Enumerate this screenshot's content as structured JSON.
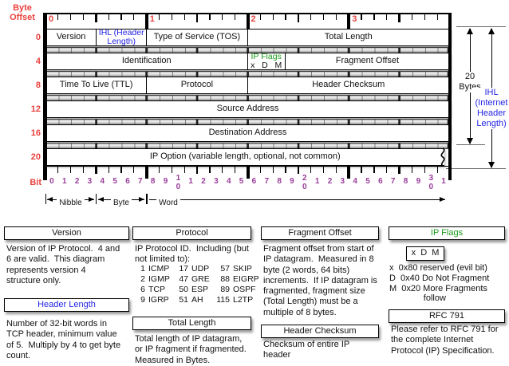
{
  "colors": {
    "red": "#e8433f",
    "blue": "#2525e6",
    "green": "#1a9c1a",
    "purple": "#993d99"
  },
  "diagram": {
    "byte_offset_label": "Byte\nOffset",
    "bit_label": "Bit",
    "byte_numbers": [
      "0",
      "1",
      "2",
      "3"
    ],
    "row_offsets": [
      "0",
      "4",
      "8",
      "12",
      "16",
      "20"
    ],
    "bit_numbers": [
      "0",
      "1",
      "2",
      "3",
      "4",
      "5",
      "6",
      "7",
      "8",
      "9",
      "1|0",
      "1",
      "2",
      "3",
      "4",
      "5",
      "6",
      "7",
      "8",
      "9",
      "2|0",
      "1",
      "2",
      "3",
      "4",
      "5",
      "6",
      "7",
      "8",
      "9",
      "3|0",
      "1"
    ],
    "scale_labels": {
      "nibble": "Nibble",
      "byte": "Byte",
      "word": "Word"
    },
    "rows": [
      {
        "offset": "0",
        "cells": [
          {
            "label": "Version",
            "bits": 4
          },
          {
            "label": "IHL (Header\nLength)",
            "bits": 4,
            "color": "blue",
            "small": true
          },
          {
            "label": "Type of Service (TOS)",
            "bits": 8
          },
          {
            "label": "Total Length",
            "bits": 16
          }
        ]
      },
      {
        "offset": "4",
        "cells": [
          {
            "label": "Identification",
            "bits": 16
          },
          {
            "label": "IP Flags",
            "sub": "x   D   M",
            "bits": 3,
            "color": "green",
            "small": true
          },
          {
            "label": "Fragment Offset",
            "bits": 13
          }
        ]
      },
      {
        "offset": "8",
        "cells": [
          {
            "label": "Time To Live (TTL)",
            "bits": 8
          },
          {
            "label": "Protocol",
            "bits": 8
          },
          {
            "label": "Header Checksum",
            "bits": 16
          }
        ]
      },
      {
        "offset": "12",
        "cells": [
          {
            "label": "Source Address",
            "bits": 32
          }
        ]
      },
      {
        "offset": "16",
        "cells": [
          {
            "label": "Destination Address",
            "bits": 32
          }
        ]
      },
      {
        "offset": "20",
        "cells": [
          {
            "label": "IP Option (variable length, optional, not common)",
            "bits": 32
          }
        ],
        "torn": true
      }
    ],
    "right_annotations": {
      "bytes_label": "20\nBytes",
      "ihl_label": "IHL\n(Internet\nHeader\nLength)"
    }
  },
  "notes": {
    "version": {
      "title": "Version",
      "body": "Version of IP Protocol.  4 and\n6 are valid.  This diagram\nrepresents version 4\nstructure only."
    },
    "header_length": {
      "title": "Header Length",
      "body": "Number of 32-bit words in\nTCP header, minimum value\nof 5.  Multiply by 4 to get byte\ncount."
    },
    "protocol": {
      "title": "Protocol",
      "intro": "IP Protocol ID.  Including (but\nnot limited to):",
      "table": [
        [
          "1",
          "ICMP",
          "17",
          "UDP",
          "57",
          "SKIP"
        ],
        [
          "2",
          "IGMP",
          "47",
          "GRE",
          "88",
          "EIGRP"
        ],
        [
          "6",
          "TCP",
          "50",
          "ESP",
          "89",
          "OSPF"
        ],
        [
          "9",
          "IGRP",
          "51",
          "AH",
          "115",
          "L2TP"
        ]
      ]
    },
    "total_length": {
      "title": "Total Length",
      "body": "Total length of IP datagram,\nor IP fragment if fragmented.\nMeasured in Bytes."
    },
    "fragment_offset": {
      "title": "Fragment Offset",
      "body": "Fragment offset from start of\nIP datagram.  Measured in 8\nbyte (2 words, 64 bits)\nincrements.  If IP datagram is\nfragmented, fragment size\n(Total Length) must be a\nmultiple of 8 bytes."
    },
    "header_checksum": {
      "title": "Header Checksum",
      "body": "Checksum of entire IP\nheader"
    },
    "ip_flags": {
      "title": "IP Flags",
      "flag_box": "x  D  M",
      "flags": "x  0x80 reserved (evil bit)\nD  0x40 Do Not Fragment\nM  0x20 More Fragments\n              follow"
    },
    "rfc": {
      "title": "RFC 791",
      "body": "Please refer to RFC 791 for\nthe complete Internet\nProtocol (IP) Specification."
    }
  }
}
